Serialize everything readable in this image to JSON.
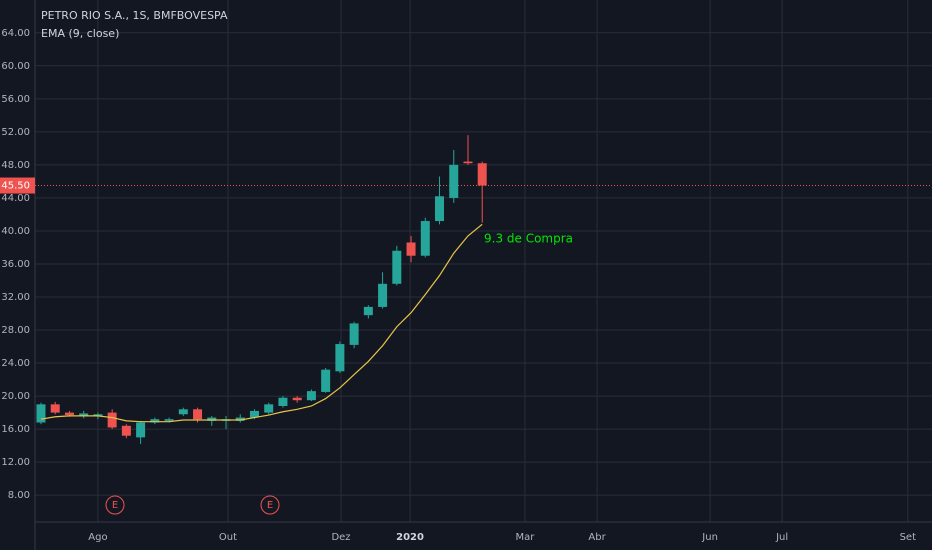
{
  "chart_data": {
    "type": "candlestick",
    "title": "PETRO RIO S.A., 1S, BMFBOVESPA",
    "indicator_label": "EMA (9, close)",
    "annotation": "9.3 de Compra",
    "events": [
      "E",
      "E"
    ],
    "last_price": {
      "value": 45.5,
      "label": "45.50"
    },
    "up_color": "#26a69a",
    "down_color": "#ef5350",
    "grid": true,
    "categories": [
      null,
      null,
      null,
      null,
      null,
      null,
      null,
      null,
      null,
      null,
      null,
      null,
      null,
      null,
      null,
      null,
      null,
      null,
      null,
      null,
      null,
      null,
      null,
      null,
      null,
      null,
      null,
      null,
      null,
      null,
      null,
      null
    ],
    "open": [
      16.8,
      19.0,
      18.0,
      17.6,
      17.6,
      18.0,
      16.4,
      15.0,
      16.8,
      17.0,
      17.8,
      18.4,
      17.0,
      17.0,
      17.0,
      17.4,
      18.0,
      18.8,
      19.8,
      19.5,
      20.5,
      23.0,
      26.2,
      29.8,
      30.8,
      33.6,
      38.6,
      37.0,
      41.2,
      44.0,
      48.4,
      48.2
    ],
    "high": [
      19.2,
      19.3,
      18.2,
      18.2,
      18.0,
      18.4,
      16.6,
      17.0,
      17.4,
      17.4,
      18.6,
      18.6,
      17.6,
      17.6,
      17.8,
      18.4,
      19.2,
      20.0,
      20.0,
      20.8,
      23.4,
      26.6,
      29.0,
      31.0,
      35.0,
      38.2,
      39.4,
      41.6,
      46.6,
      49.8,
      51.6,
      48.4
    ],
    "low": [
      16.6,
      17.8,
      17.5,
      17.3,
      17.2,
      16.0,
      14.9,
      14.2,
      16.6,
      16.8,
      17.6,
      16.8,
      16.4,
      16.0,
      16.8,
      17.2,
      17.8,
      18.6,
      19.2,
      19.4,
      20.4,
      22.8,
      25.8,
      29.4,
      30.6,
      33.4,
      36.2,
      36.8,
      40.8,
      43.4,
      48.0,
      41.0
    ],
    "close": [
      19.0,
      18.0,
      17.7,
      17.9,
      17.8,
      16.2,
      15.2,
      16.8,
      17.2,
      17.2,
      18.4,
      17.2,
      17.4,
      17.2,
      17.4,
      18.2,
      19.0,
      19.8,
      19.5,
      20.6,
      23.2,
      26.3,
      28.8,
      30.8,
      33.6,
      37.6,
      37.0,
      41.2,
      44.2,
      48.0,
      48.2,
      45.5
    ],
    "series": [
      {
        "name": "EMA (9, close)",
        "color": "#e8c547",
        "values": [
          17.2,
          17.5,
          17.6,
          17.6,
          17.6,
          17.4,
          17.0,
          16.9,
          16.9,
          16.9,
          17.1,
          17.1,
          17.1,
          17.1,
          17.1,
          17.4,
          17.7,
          18.1,
          18.4,
          18.8,
          19.7,
          21.0,
          22.6,
          24.2,
          26.1,
          28.4,
          30.1,
          32.3,
          34.6,
          37.3,
          39.4,
          40.8
        ]
      }
    ],
    "xlim": [
      -0.42,
      62.6
    ],
    "xticks": [
      {
        "value": 4.0,
        "label": "Ago"
      },
      {
        "value": 13.14,
        "label": "Out"
      },
      {
        "value": 21.08,
        "label": "Dez"
      },
      {
        "value": 25.93,
        "label": "2020"
      },
      {
        "value": 34.0,
        "label": "Mar"
      },
      {
        "value": 39.07,
        "label": "Abr"
      },
      {
        "value": 47.01,
        "label": "Jun"
      },
      {
        "value": 52.07,
        "label": "Jul"
      },
      {
        "value": 60.9,
        "label": "Set"
      }
    ],
    "ylim": [
      4.75,
      67.97
    ],
    "yticks": [
      {
        "value": 8,
        "label": "8.00"
      },
      {
        "value": 12,
        "label": "12.00"
      },
      {
        "value": 16,
        "label": "16.00"
      },
      {
        "value": 20,
        "label": "20.00"
      },
      {
        "value": 24,
        "label": "24.00"
      },
      {
        "value": 28,
        "label": "28.00"
      },
      {
        "value": 32,
        "label": "32.00"
      },
      {
        "value": 36,
        "label": "36.00"
      },
      {
        "value": 40,
        "label": "40.00"
      },
      {
        "value": 44,
        "label": "44.00"
      },
      {
        "value": 48,
        "label": "48.00"
      },
      {
        "value": 52,
        "label": "52.00"
      },
      {
        "value": 56,
        "label": "56.00"
      },
      {
        "value": 60,
        "label": "60.00"
      },
      {
        "value": 64,
        "label": "64.00"
      }
    ]
  }
}
